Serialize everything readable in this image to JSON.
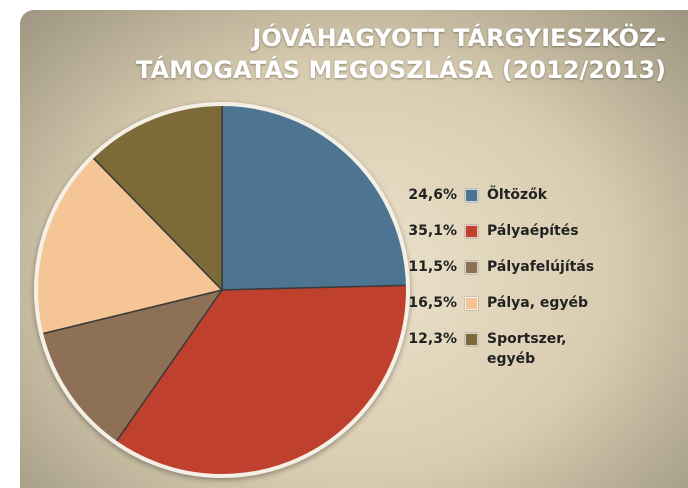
{
  "chart_data": {
    "type": "pie",
    "title": [
      "JÓVÁHAGYOTT TÁRGYIESZKÖZ-",
      "TÁMOGATÁS MEGOSZLÁSA (2012/2013)"
    ],
    "categories": [
      "Öltözők",
      "Pályaépítés",
      "Pályafelújítás",
      "Pálya, egyéb",
      "Sportszer, egyéb"
    ],
    "values": [
      24.6,
      35.1,
      11.5,
      16.5,
      12.3
    ],
    "value_labels": [
      "24,6%",
      "35,1%",
      "11,5%",
      "16,5%",
      "12,3%"
    ],
    "colors": [
      "#4d7591",
      "#c0412e",
      "#8d7057",
      "#f6c596",
      "#7b6a39"
    ],
    "legend": "right"
  }
}
